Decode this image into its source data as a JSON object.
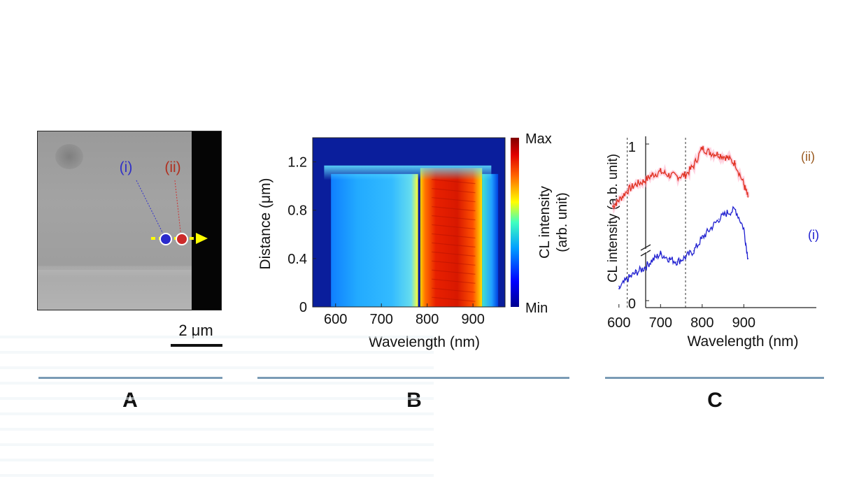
{
  "panels": {
    "a": {
      "letter": "A",
      "marker_i": "(i)",
      "marker_ii": "(ii)",
      "scale_bar": "2 μm",
      "colors": {
        "marker_i": "#2a2acc",
        "marker_ii": "#cc2a2a",
        "arrow": "#ffff00"
      }
    },
    "b": {
      "letter": "B",
      "colorbar_max": "Max",
      "colorbar_min": "Min",
      "colorbar_label_1": "CL intensity",
      "colorbar_label_2": "(arb. unit)"
    },
    "c": {
      "letter": "C"
    }
  },
  "chart_data": [
    {
      "type": "heatmap",
      "title": "",
      "xlabel": "Wavelength (nm)",
      "ylabel": "Distance (μm)",
      "xlim": [
        550,
        970
      ],
      "ylim": [
        0,
        1.4
      ],
      "xticks": [
        600,
        700,
        800,
        900
      ],
      "yticks": [
        0,
        0.4,
        0.8,
        1.2
      ],
      "ytick_labels": [
        "0",
        "0.4",
        "0.8",
        "1.2"
      ],
      "colorbar": {
        "min_label": "Min",
        "max_label": "Max",
        "label": "CL intensity (arb. unit)"
      },
      "bands": [
        {
          "x_start": 590,
          "x_end": 780,
          "y_start": 0,
          "y_end": 1.1,
          "level": "medium"
        },
        {
          "x_start": 785,
          "x_end": 920,
          "y_start": 0,
          "y_end": 1.15,
          "level": "high"
        },
        {
          "x_start": 920,
          "x_end": 955,
          "y_start": 0,
          "y_end": 1.1,
          "level": "low"
        }
      ]
    },
    {
      "type": "line",
      "title": "",
      "xlabel": "Wavelength (nm)",
      "ylabel": "CL intensity (a.b. unit)",
      "xlim": [
        560,
        970
      ],
      "xticks": [
        600,
        700,
        800,
        900
      ],
      "yticks": [
        "0",
        "1"
      ],
      "axis_break": true,
      "vertical_lines": [
        620,
        760
      ],
      "series": [
        {
          "name": "(ii)",
          "color": "#e03020",
          "x": [
            585,
            600,
            620,
            640,
            660,
            680,
            700,
            720,
            740,
            760,
            780,
            800,
            820,
            840,
            860,
            880,
            900,
            910
          ],
          "y": [
            0.6,
            0.64,
            0.7,
            0.74,
            0.76,
            0.8,
            0.82,
            0.8,
            0.79,
            0.8,
            0.86,
            0.97,
            0.94,
            0.93,
            0.91,
            0.87,
            0.74,
            0.66
          ]
        },
        {
          "name": "(i)",
          "color": "#2020d0",
          "x": [
            600,
            620,
            640,
            660,
            680,
            700,
            720,
            740,
            760,
            780,
            800,
            820,
            840,
            860,
            880,
            900,
            910
          ],
          "y": [
            0.08,
            0.14,
            0.18,
            0.21,
            0.26,
            0.3,
            0.27,
            0.25,
            0.28,
            0.32,
            0.4,
            0.46,
            0.52,
            0.56,
            0.58,
            0.46,
            0.27
          ]
        }
      ]
    }
  ]
}
